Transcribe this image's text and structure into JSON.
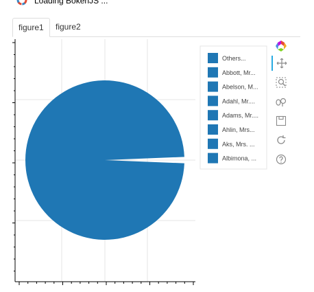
{
  "loading": {
    "text": "Loading BokehJS ..."
  },
  "tabs": [
    {
      "label": "figure1",
      "active": true
    },
    {
      "label": "figure2",
      "active": false
    }
  ],
  "toolbar": {
    "tools": [
      "bokeh-logo",
      "pan-icon",
      "box-zoom-icon",
      "wheel-zoom-icon",
      "save-icon",
      "reset-icon",
      "help-icon"
    ],
    "active_color": "#26aae1"
  },
  "chart_data": {
    "type": "pie",
    "slices": [
      {
        "label": "Others...",
        "value": 99.0
      },
      {
        "label": "Abbott, Mr...",
        "value": 0.13
      },
      {
        "label": "Abelson, M...",
        "value": 0.13
      },
      {
        "label": "Adahl, Mr....",
        "value": 0.13
      },
      {
        "label": "Adams, Mr....",
        "value": 0.13
      },
      {
        "label": "Ahlin, Mrs...",
        "value": 0.13
      },
      {
        "label": "Aks, Mrs. ...",
        "value": 0.13
      },
      {
        "label": "Albimona, ...",
        "value": 0.13
      }
    ],
    "color": "#1f77b4",
    "legend": {
      "entries": [
        "Others...",
        "Abbott, Mr...",
        "Abelson, M...",
        "Adahl, Mr....",
        "Adams, Mr....",
        "Ahlin, Mrs...",
        "Aks, Mrs. ...",
        "Albimona, ..."
      ],
      "position": "right"
    },
    "grid": true,
    "xlabel": "",
    "ylabel": "",
    "title": ""
  }
}
